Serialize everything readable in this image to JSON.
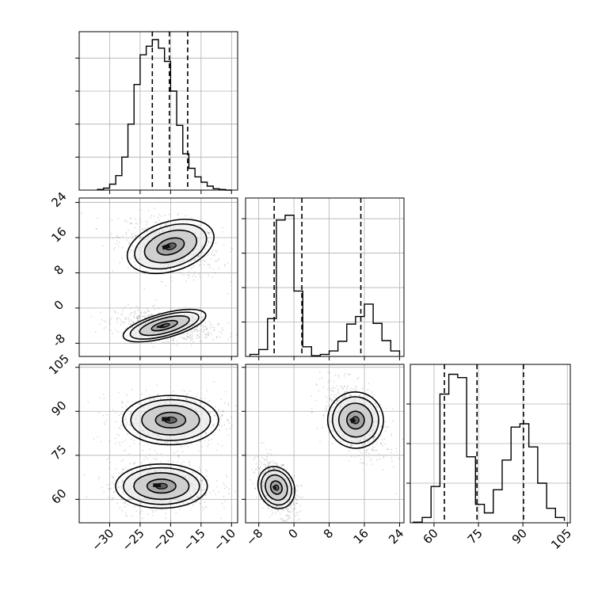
{
  "chart_data": [
    {
      "type": "histogram",
      "panel": "diag-1",
      "variable": "x1",
      "xlim": [
        -35,
        -9
      ],
      "bins": [
        -32,
        -31,
        -30,
        -29,
        -28,
        -27,
        -26,
        -25,
        -24,
        -23,
        -22,
        -21,
        -20,
        -19,
        -18,
        -17,
        -16,
        -15,
        -14,
        -13,
        -12,
        -11,
        -10
      ],
      "counts": [
        1,
        3,
        9,
        22,
        50,
        100,
        160,
        205,
        218,
        228,
        215,
        195,
        150,
        98,
        55,
        33,
        20,
        12,
        6,
        2,
        1,
        0
      ],
      "ylim": [
        0,
        240
      ],
      "quantiles": [
        -23.0,
        -20.2,
        -17.2
      ]
    },
    {
      "type": "scatter-density",
      "panel": "x1-vs-x2",
      "x_variable": "x1",
      "y_variable": "x2",
      "xlim": [
        -35,
        -9
      ],
      "ylim": [
        -11,
        25
      ],
      "yticks": [
        "24",
        "16",
        "8",
        "0",
        "-8"
      ],
      "clusters": [
        {
          "center": [
            -20,
            14
          ],
          "spread": [
            4.2,
            3.2
          ],
          "tilt": -0.35
        },
        {
          "center": [
            -21,
            -4
          ],
          "spread": [
            4.0,
            1.6
          ],
          "tilt": -0.3
        }
      ]
    },
    {
      "type": "histogram",
      "panel": "diag-2",
      "variable": "x2",
      "xlim": [
        -11,
        25
      ],
      "bins": [
        -10,
        -8,
        -6,
        -4,
        -2,
        0,
        2,
        4,
        6,
        8,
        10,
        12,
        14,
        16,
        18,
        20,
        22,
        24
      ],
      "counts": [
        3,
        10,
        55,
        198,
        205,
        95,
        14,
        1,
        3,
        8,
        22,
        47,
        58,
        76,
        48,
        23,
        8,
        1
      ],
      "ylim": [
        0,
        230
      ],
      "quantiles": [
        -4.5,
        1.8,
        15.2
      ],
      "tick_values": [
        -8,
        0,
        8,
        16,
        24
      ]
    },
    {
      "type": "scatter-density",
      "panel": "x1-vs-x3",
      "x_variable": "x1",
      "y_variable": "x3",
      "xlim": [
        -35,
        -9
      ],
      "ylim": [
        52,
        106
      ],
      "xticks": [
        "−30",
        "−25",
        "−20",
        "−15",
        "−10"
      ],
      "yticks": [
        "105",
        "90",
        "75",
        "60"
      ],
      "clusters": [
        {
          "center": [
            -20,
            87
          ],
          "spread": [
            4.5,
            4.8
          ],
          "tilt": 0
        },
        {
          "center": [
            -21.5,
            64.5
          ],
          "spread": [
            4.3,
            4.3
          ],
          "tilt": 0
        }
      ]
    },
    {
      "type": "scatter-density",
      "panel": "x2-vs-x3",
      "x_variable": "x2",
      "y_variable": "x3",
      "xlim": [
        -11,
        25
      ],
      "ylim": [
        52,
        106
      ],
      "xticks": [
        "−8",
        "0",
        "8",
        "16",
        "24"
      ],
      "clusters": [
        {
          "center": [
            14,
            87
          ],
          "spread": [
            3.6,
            5.5
          ],
          "tilt": -0.6
        },
        {
          "center": [
            -4,
            64
          ],
          "spread": [
            2.3,
            4.2
          ],
          "tilt": -0.5
        }
      ]
    },
    {
      "type": "histogram",
      "panel": "diag-3",
      "variable": "x3",
      "xlim": [
        52,
        106
      ],
      "bins": [
        53,
        56,
        59,
        62,
        65,
        68,
        71,
        74,
        77,
        80,
        83,
        86,
        89,
        92,
        95,
        98,
        101,
        104
      ],
      "counts": [
        1,
        8,
        55,
        195,
        225,
        220,
        100,
        28,
        15,
        50,
        95,
        145,
        150,
        115,
        60,
        22,
        8,
        3
      ],
      "ylim": [
        0,
        240
      ],
      "quantiles": [
        63.5,
        74.5,
        90.2
      ],
      "xticks": [
        "60",
        "75",
        "90",
        "105"
      ]
    }
  ]
}
